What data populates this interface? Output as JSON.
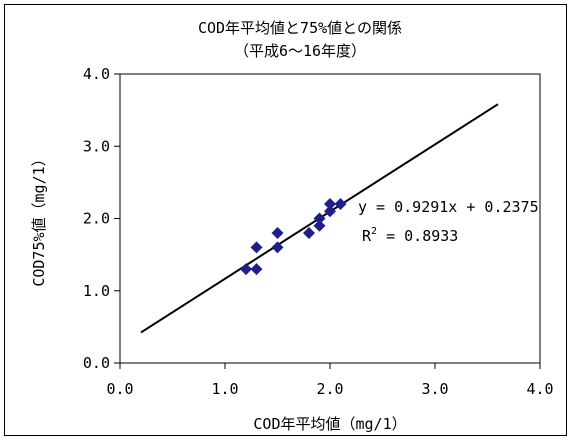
{
  "chart_data": {
    "type": "scatter",
    "title": "COD年平均値と75%値との関係",
    "subtitle": "（平成6～16年度）",
    "xlabel": "COD年平均値（mg/1）",
    "ylabel": "COD75%値（mg/1）",
    "xlim": [
      0,
      4
    ],
    "ylim": [
      0,
      4
    ],
    "xticks": [
      "0.0",
      "1.0",
      "2.0",
      "3.0",
      "4.0"
    ],
    "yticks": [
      "0.0",
      "1.0",
      "2.0",
      "3.0",
      "4.0"
    ],
    "grid": false,
    "legend": "none",
    "marker_color": "#1F1F8C",
    "points": [
      {
        "x": 1.2,
        "y": 1.3
      },
      {
        "x": 1.3,
        "y": 1.3
      },
      {
        "x": 1.3,
        "y": 1.6
      },
      {
        "x": 1.5,
        "y": 1.6
      },
      {
        "x": 1.5,
        "y": 1.8
      },
      {
        "x": 1.8,
        "y": 1.8
      },
      {
        "x": 1.9,
        "y": 1.9
      },
      {
        "x": 1.9,
        "y": 2.0
      },
      {
        "x": 2.0,
        "y": 2.1
      },
      {
        "x": 2.0,
        "y": 2.2
      },
      {
        "x": 2.1,
        "y": 2.2
      }
    ],
    "trendline": {
      "slope": 0.9291,
      "intercept": 0.2375,
      "x_start": 0.2,
      "x_end": 3.6,
      "equation_label": "y = 0.9291x + 0.2375",
      "r2_prefix": "R",
      "r2_sup": "2",
      "r2_value": " = 0.8933"
    }
  }
}
